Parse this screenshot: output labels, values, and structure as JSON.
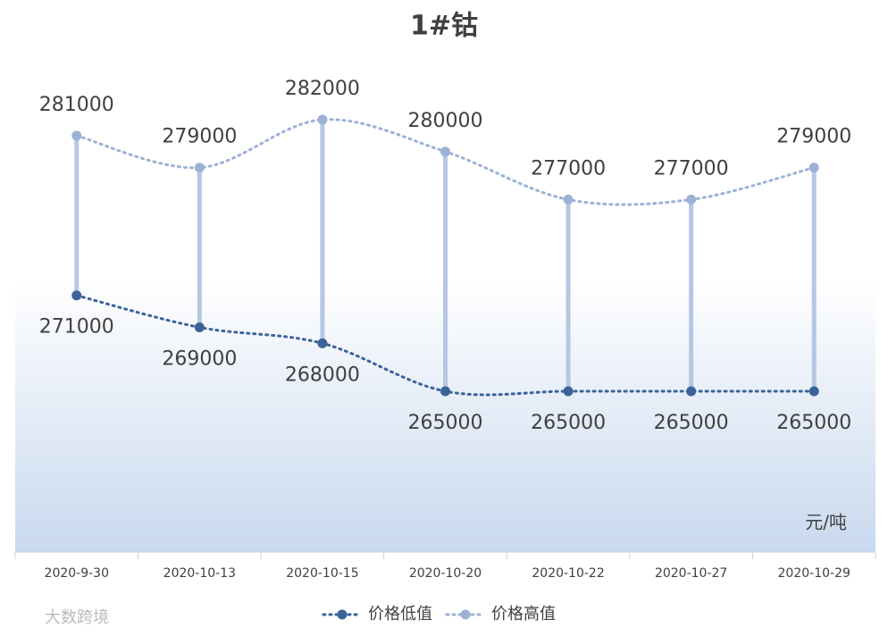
{
  "chart_data": {
    "type": "line",
    "title": "1#钴",
    "unit": "元/吨",
    "watermark": "大数跨境",
    "categories": [
      "2020-9-30",
      "2020-10-13",
      "2020-10-15",
      "2020-10-20",
      "2020-10-22",
      "2020-10-27",
      "2020-10-29"
    ],
    "series": [
      {
        "name": "价格低值",
        "color": "#3b6399",
        "values": [
          271000,
          269000,
          268000,
          265000,
          265000,
          265000,
          265000
        ]
      },
      {
        "name": "价格高值",
        "color": "#9cb2d5",
        "values": [
          281000,
          279000,
          282000,
          280000,
          277000,
          277000,
          279000
        ]
      }
    ],
    "high_low_lines": true,
    "smooth": true
  }
}
